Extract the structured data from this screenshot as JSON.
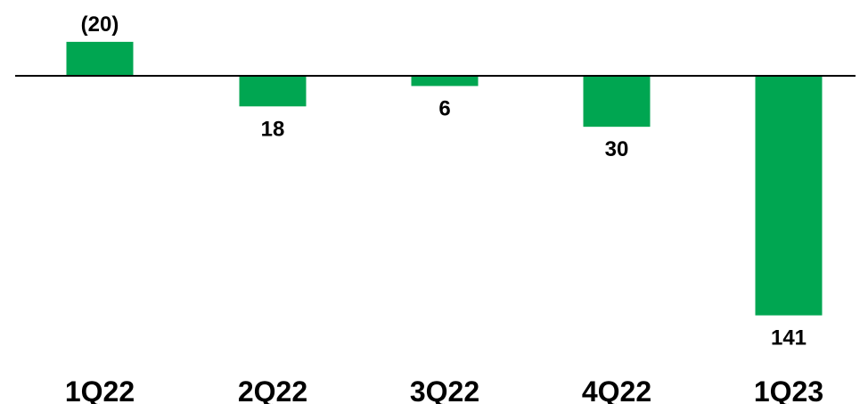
{
  "chart_data": {
    "type": "bar",
    "categories": [
      "1Q22",
      "2Q22",
      "3Q22",
      "4Q22",
      "1Q23"
    ],
    "values": [
      -20,
      18,
      6,
      30,
      141
    ],
    "data_labels": [
      "(20)",
      "18",
      "6",
      "30",
      "141"
    ],
    "title": "",
    "xlabel": "",
    "ylabel": "",
    "axis_direction": "values increase downward from the baseline",
    "ylim": [
      -20,
      141
    ],
    "grid": false,
    "legend": "none",
    "bar_color": "#00a651",
    "axis_color": "#000000"
  }
}
